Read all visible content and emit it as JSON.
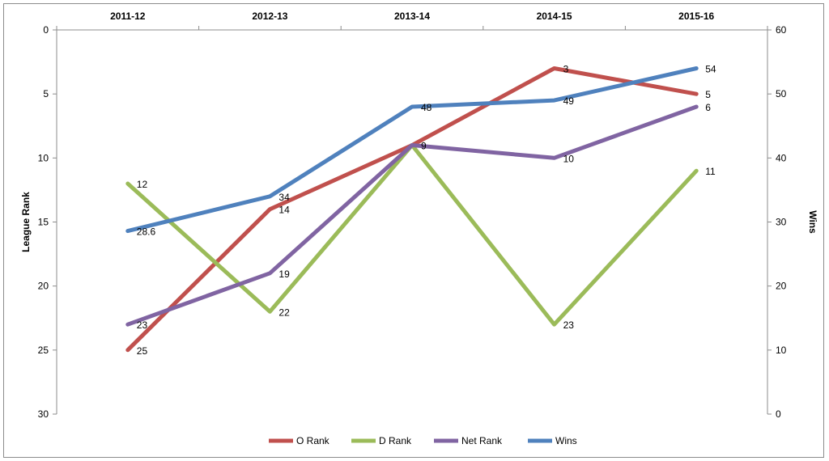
{
  "chart_data": {
    "type": "line",
    "categories": [
      "2011-12",
      "2012-13",
      "2013-14",
      "2014-15",
      "2015-16"
    ],
    "y_left": {
      "label": "League Rank",
      "range": [
        0,
        30
      ],
      "ticks": [
        0,
        5,
        10,
        15,
        20,
        25,
        30
      ],
      "inverted": true
    },
    "y_right": {
      "label": "Wins",
      "range": [
        0,
        60
      ],
      "ticks": [
        0,
        10,
        20,
        30,
        40,
        50,
        60
      ]
    },
    "category_axis_position": "top",
    "legend_position": "bottom",
    "series": [
      {
        "name": "O Rank",
        "axis": "left",
        "color": "#c0504d",
        "values": [
          25,
          14,
          9,
          3,
          5
        ],
        "labels": [
          "25",
          "14",
          "9",
          "3",
          "5"
        ]
      },
      {
        "name": "D Rank",
        "axis": "left",
        "color": "#9bbb59",
        "values": [
          12,
          22,
          9,
          23,
          11
        ],
        "labels": [
          "12",
          "22",
          "",
          "23",
          "11"
        ]
      },
      {
        "name": "Net Rank",
        "axis": "left",
        "color": "#8064a2",
        "values": [
          23,
          19,
          9,
          10,
          6
        ],
        "labels": [
          "23",
          "19",
          "",
          "10",
          "6"
        ]
      },
      {
        "name": "Wins",
        "axis": "right",
        "color": "#4f81bd",
        "values": [
          28.6,
          34,
          48,
          49,
          54
        ],
        "labels": [
          "28.6",
          "34",
          "48",
          "49",
          "54"
        ]
      }
    ]
  }
}
